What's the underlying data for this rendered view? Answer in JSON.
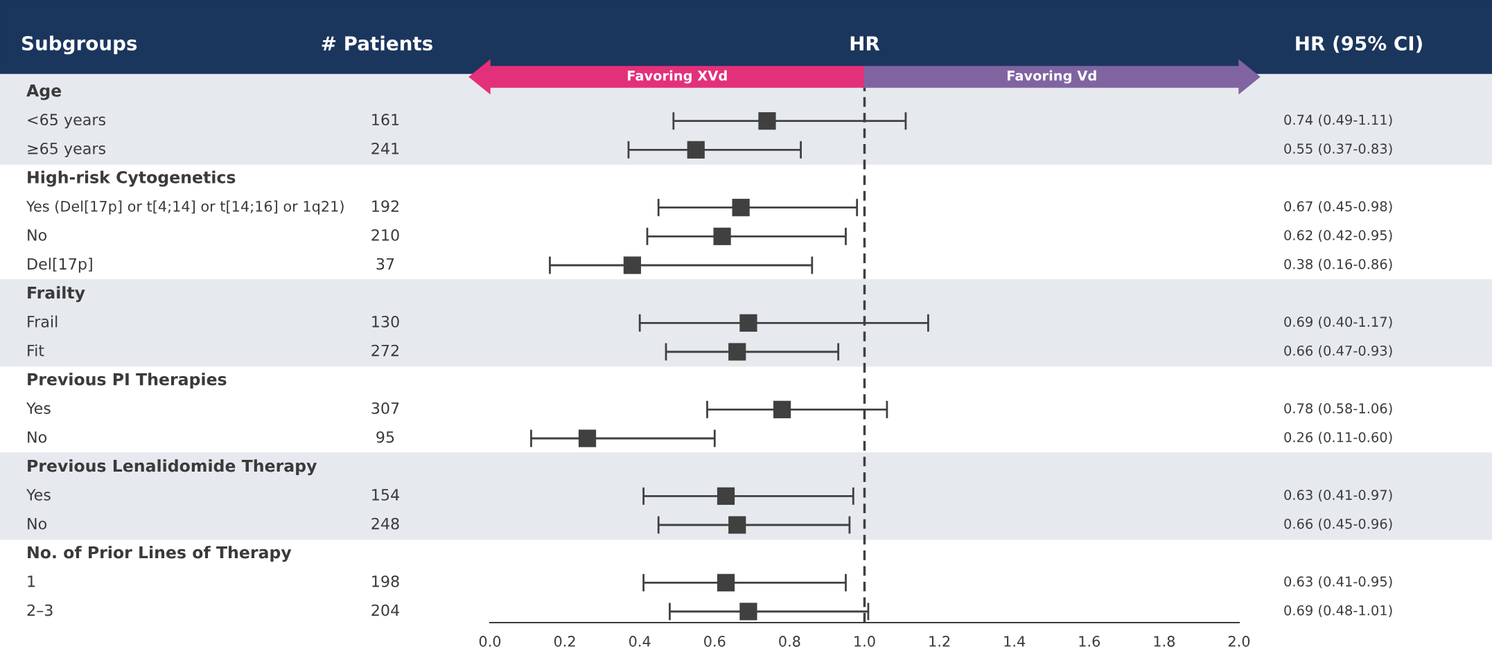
{
  "chart_data": {
    "type": "scatter",
    "orientation": "horizontal",
    "ylabel": "Subgroups",
    "xlabel": "HR",
    "categories": [
      "Age",
      "<65 years",
      "≥65 years",
      "High-risk Cytogenetics",
      "Yes (Del[17p] or t[4;14] or t[14;16] or 1q21)",
      "No",
      "Del[17p]",
      "Frailty",
      "Frail",
      "Fit",
      "Previous PI Therapies",
      "Yes",
      "No",
      "Previous Lenalidomide Therapy",
      "Yes",
      "No",
      "No. of Prior Lines of Therapy",
      "1",
      "2–3"
    ],
    "values": [
      null,
      0.74,
      0.55,
      null,
      0.67,
      0.62,
      0.38,
      null,
      0.69,
      0.66,
      null,
      0.78,
      0.26,
      null,
      0.63,
      0.66,
      null,
      0.63,
      0.69
    ],
    "errors": [
      null,
      [
        0.49,
        1.11
      ],
      [
        0.37,
        0.83
      ],
      null,
      [
        0.45,
        0.98
      ],
      [
        0.42,
        0.95
      ],
      [
        0.16,
        0.86
      ],
      null,
      [
        0.4,
        1.17
      ],
      [
        0.47,
        0.93
      ],
      null,
      [
        0.58,
        1.06
      ],
      [
        0.11,
        0.6
      ],
      null,
      [
        0.41,
        0.97
      ],
      [
        0.45,
        0.96
      ],
      null,
      [
        0.41,
        0.95
      ],
      [
        0.48,
        1.01
      ]
    ],
    "value_labels": [
      null,
      "0.74 (0.49-1.11)",
      "0.55 (0.37-0.83)",
      null,
      "0.67 (0.45-0.98)",
      "0.62 (0.42-0.95)",
      "0.38 (0.16-0.86)",
      null,
      "0.69 (0.40-1.17)",
      "0.66 (0.47-0.93)",
      null,
      "0.78 (0.58-1.06)",
      "0.26 (0.11-0.60)",
      null,
      "0.63 (0.41-0.97)",
      "0.66 (0.45-0.96)",
      null,
      "0.63 (0.41-0.95)",
      "0.69 (0.48-1.01)"
    ],
    "color": "#404040",
    "marker": "square",
    "xlim": [
      0,
      2.0
    ],
    "xticks": [
      {
        "value": 0,
        "label": "0.0"
      },
      {
        "value": 0.2,
        "label": "0.2"
      },
      {
        "value": 0.4,
        "label": "0.4"
      },
      {
        "value": 0.6,
        "label": "0.6"
      },
      {
        "value": 0.8,
        "label": "0.8"
      },
      {
        "value": 1.0,
        "label": "1.0"
      },
      {
        "value": 1.2,
        "label": "1.2"
      },
      {
        "value": 1.4,
        "label": "1.4"
      },
      {
        "value": 1.6,
        "label": "1.6"
      },
      {
        "value": 1.8,
        "label": "1.8"
      },
      {
        "value": 2.0,
        "label": "2.0"
      }
    ],
    "ref_lines": [
      {
        "axis": "x",
        "value": 1.0,
        "color": "#404040",
        "line_style": "dashed"
      }
    ],
    "annotations": [
      "# Patients",
      "HR (95% CI)",
      "Favoring XVd",
      "Favoring Vd",
      "161",
      "241",
      "192",
      "210",
      "37",
      "130",
      "272",
      "307",
      "95",
      "154",
      "248",
      "198",
      "204"
    ],
    "grid": false
  }
}
